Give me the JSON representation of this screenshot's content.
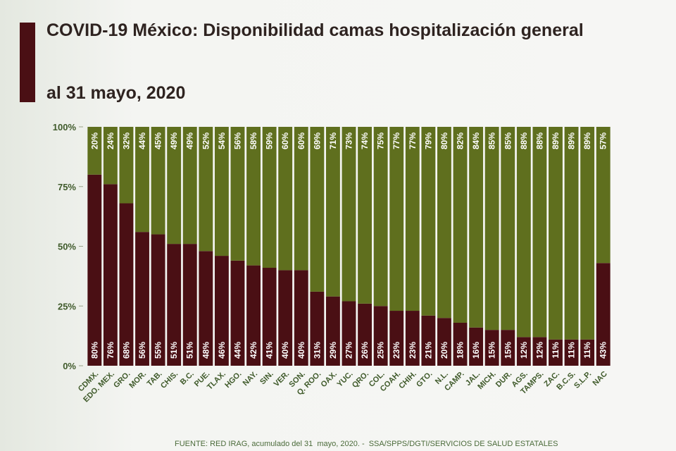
{
  "chart_data": {
    "type": "stacked_bar",
    "title": "COVID-19 México: Disponibilidad camas hospitalización general",
    "subtitle": "al 31 mayo, 2020",
    "source": "FUENTE: RED IRAG, acumulado del 31  mayo, 2020. -  SSA/SPPS/DGTI/SERVICIOS DE SALUD ESTATALES",
    "categories": [
      "CDMX.",
      "EDO. MEX.",
      "GRO.",
      "MOR.",
      "TAB.",
      "CHIS.",
      "B.C.",
      "PUE.",
      "TLAX.",
      "HGO.",
      "NAY.",
      "SIN.",
      "VER.",
      "SON.",
      "Q. ROO.",
      "OAX.",
      "YUC.",
      "QRO.",
      "COL.",
      "COAH.",
      "CHIH.",
      "GTO.",
      "N.L.",
      "CAMP.",
      "JAL.",
      "MICH.",
      "DUR.",
      "AGS.",
      "TAMPS.",
      "ZAC.",
      "B.C.S.",
      "S.L.P.",
      "NAC"
    ],
    "series": [
      {
        "color": "#4a0f14",
        "values": [
          80,
          76,
          68,
          56,
          55,
          51,
          51,
          48,
          46,
          44,
          42,
          41,
          40,
          40,
          31,
          29,
          27,
          26,
          25,
          23,
          23,
          21,
          20,
          18,
          16,
          15,
          15,
          12,
          12,
          11,
          11,
          11,
          43
        ],
        "value_labels": [
          "80%",
          "76%",
          "68%",
          "56%",
          "55%",
          "51%",
          "51%",
          "48%",
          "46%",
          "44%",
          "42%",
          "41%",
          "40%",
          "40%",
          "31%",
          "29%",
          "27%",
          "26%",
          "25%",
          "23%",
          "23%",
          "21%",
          "20%",
          "18%",
          "16%",
          "15%",
          "15%",
          "12%",
          "12%",
          "11%",
          "11%",
          "11%",
          "43%"
        ]
      },
      {
        "color": "#5f6f1e",
        "values": [
          20,
          24,
          32,
          44,
          45,
          49,
          49,
          52,
          54,
          56,
          58,
          59,
          60,
          60,
          69,
          71,
          73,
          74,
          75,
          77,
          77,
          79,
          80,
          82,
          84,
          85,
          85,
          88,
          88,
          89,
          89,
          89,
          57
        ],
        "value_labels": [
          "20%",
          "24%",
          "32%",
          "44%",
          "45%",
          "49%",
          "49%",
          "52%",
          "54%",
          "56%",
          "58%",
          "59%",
          "60%",
          "60%",
          "69%",
          "71%",
          "73%",
          "74%",
          "75%",
          "77%",
          "77%",
          "79%",
          "80%",
          "82%",
          "84%",
          "85%",
          "85%",
          "88%",
          "88%",
          "89%",
          "89%",
          "89%",
          "57%"
        ]
      }
    ],
    "ylim": [
      0,
      100
    ],
    "yticks": [
      {
        "value": 0,
        "label": "0%"
      },
      {
        "value": 25,
        "label": "25%"
      },
      {
        "value": 50,
        "label": "50%"
      },
      {
        "value": 75,
        "label": "75%"
      },
      {
        "value": 100,
        "label": "100%"
      }
    ]
  }
}
